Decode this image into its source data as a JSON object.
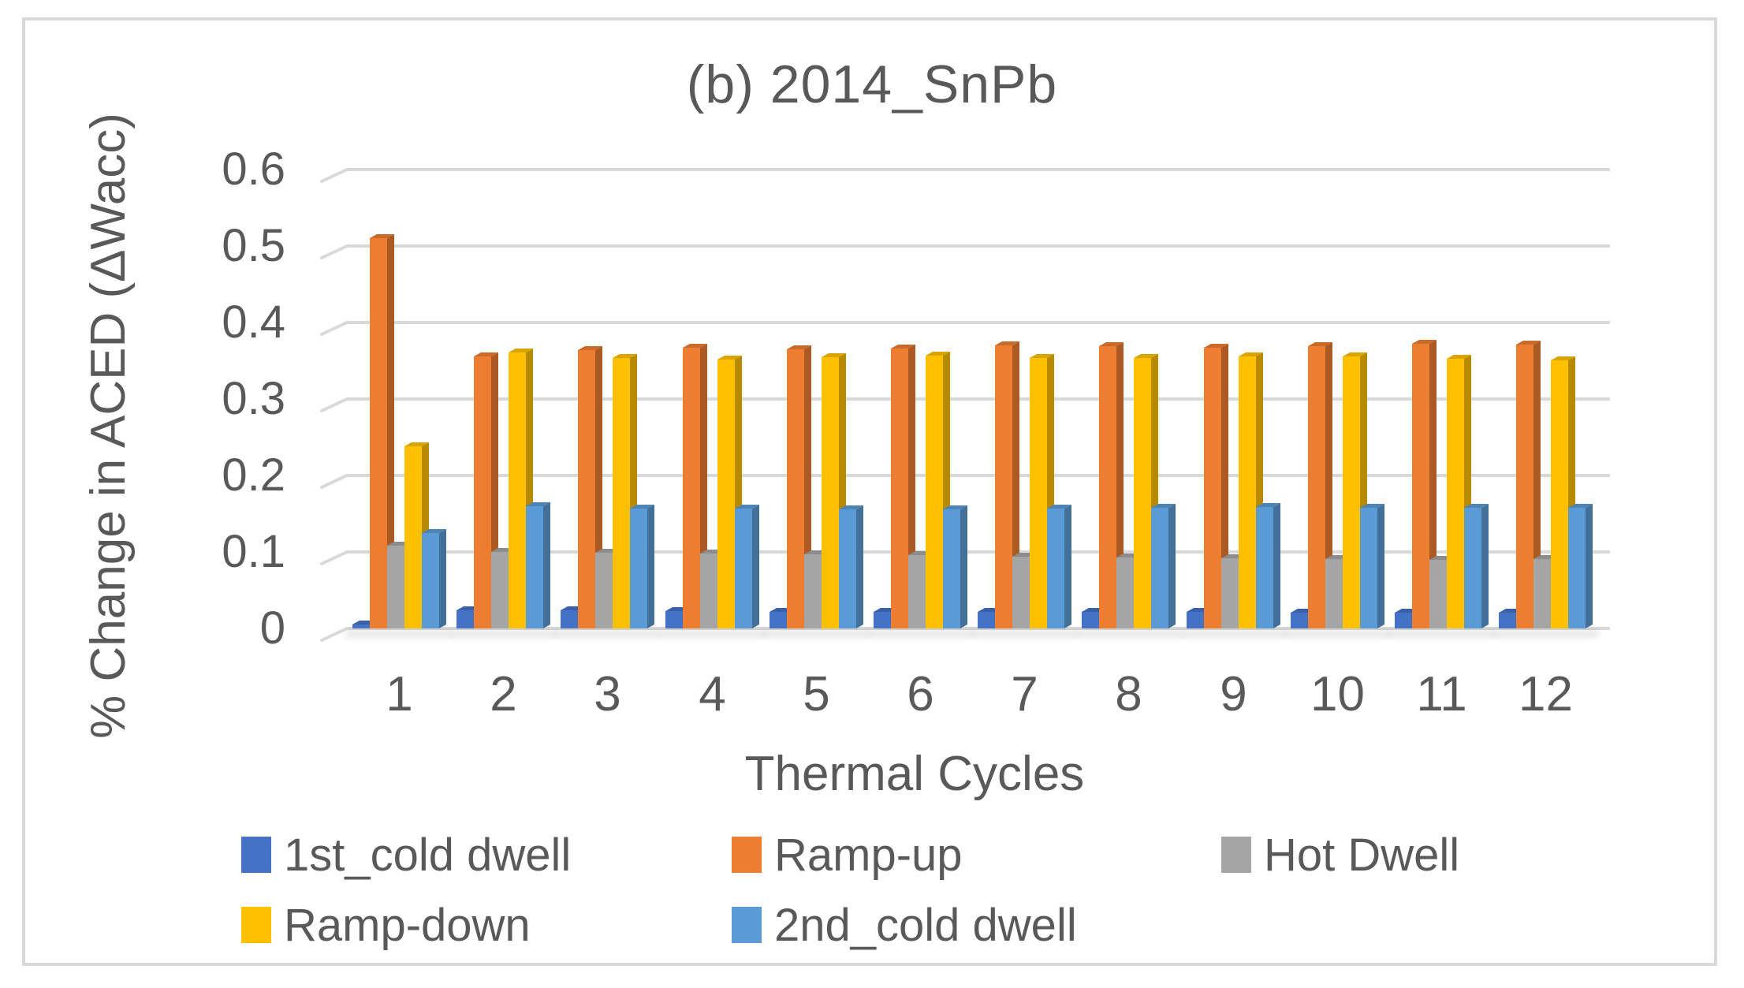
{
  "chart_data": {
    "type": "bar",
    "style": "3d-clustered-column",
    "title": "(b) 2014_SnPb",
    "xlabel": "Thermal Cycles",
    "ylabel": "% Change in ACED (ΔWacc)",
    "categories": [
      "1",
      "2",
      "3",
      "4",
      "5",
      "6",
      "7",
      "8",
      "9",
      "10",
      "11",
      "12"
    ],
    "y_ticks": [
      "0.6",
      "0.5",
      "0.4",
      "0.3",
      "0.2",
      "0.1",
      "0"
    ],
    "ylim": [
      0,
      0.6
    ],
    "grid": "horizontal-only",
    "legend_position": "bottom",
    "series": [
      {
        "name": "1st_cold dwell",
        "color": "#4472C4",
        "values": [
          0.005,
          0.024,
          0.024,
          0.023,
          0.022,
          0.022,
          0.022,
          0.022,
          0.022,
          0.021,
          0.021,
          0.021
        ]
      },
      {
        "name": "Ramp-up",
        "color": "#ED7D31",
        "values": [
          0.51,
          0.356,
          0.364,
          0.367,
          0.365,
          0.366,
          0.37,
          0.369,
          0.367,
          0.369,
          0.372,
          0.371
        ]
      },
      {
        "name": "Hot Dwell",
        "color": "#A5A5A5",
        "values": [
          0.108,
          0.1,
          0.099,
          0.098,
          0.097,
          0.096,
          0.094,
          0.093,
          0.092,
          0.091,
          0.09,
          0.091
        ]
      },
      {
        "name": "Ramp-down",
        "color": "#FFC000",
        "values": [
          0.238,
          0.361,
          0.354,
          0.352,
          0.355,
          0.357,
          0.354,
          0.354,
          0.356,
          0.356,
          0.353,
          0.351
        ]
      },
      {
        "name": "2nd_cold dwell",
        "color": "#5B9BD5",
        "values": [
          0.125,
          0.16,
          0.157,
          0.157,
          0.156,
          0.156,
          0.157,
          0.158,
          0.159,
          0.158,
          0.158,
          0.158
        ]
      }
    ],
    "colors": {
      "text": "#595959",
      "gridline": "#D9D9D9",
      "frame_border": "#D9D9D9",
      "background": "#FFFFFF"
    }
  }
}
